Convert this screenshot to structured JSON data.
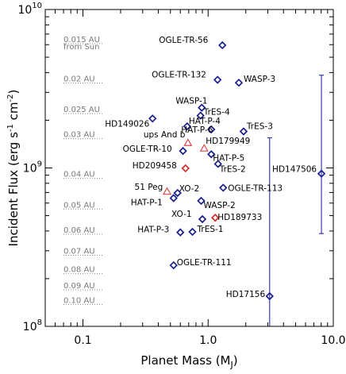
{
  "chart_data": {
    "type": "scatter",
    "xlabel": "Planet Mass (M",
    "xlabel_sub": "J",
    "xlabel_close": ")",
    "ylabel": "Incident Flux (erg s",
    "ylabel_sup1": "-1",
    "ylabel_mid": " cm",
    "ylabel_sup2": "-2",
    "ylabel_close": ")",
    "x_scale": "log",
    "y_scale": "log",
    "xlim": [
      0.05,
      10
    ],
    "ylim": [
      100000000.0,
      10000000000.0
    ],
    "x_ticks": [
      {
        "value": 0.1,
        "label": "0.1"
      },
      {
        "value": 1.0,
        "label": "1.0"
      },
      {
        "value": 10.0,
        "label": "10.0"
      }
    ],
    "y_ticks": [
      {
        "value": 100000000.0,
        "base": "10",
        "exp": "8"
      },
      {
        "value": 1000000000.0,
        "base": "10",
        "exp": "9"
      },
      {
        "value": 10000000000.0,
        "base": "10",
        "exp": "10"
      }
    ],
    "distance_labels": [
      {
        "label": "0.015 AU",
        "flux": 6100000000.0
      },
      {
        "label": "from Sun",
        "flux": 5500000000.0
      },
      {
        "label": "0.02 AU",
        "flux": 3440000000.0
      },
      {
        "label": "0.025 AU",
        "flux": 2200000000.0
      },
      {
        "label": "0.03 AU",
        "flux": 1530000000.0
      },
      {
        "label": "0.04 AU",
        "flux": 860000000.0
      },
      {
        "label": "0.05 AU",
        "flux": 550000000.0
      },
      {
        "label": "0.06 AU",
        "flux": 382000000.0
      },
      {
        "label": "0.07 AU",
        "flux": 281000000.0
      },
      {
        "label": "0.08 AU",
        "flux": 215000000.0
      },
      {
        "label": "0.09 AU",
        "flux": 170000000.0
      },
      {
        "label": "0.10 AU",
        "flux": 137500000.0
      }
    ],
    "series": [
      {
        "marker": "diamond",
        "color": "#1a1f8a",
        "points": [
          {
            "name": "OGLE-TR-56",
            "x": 1.3,
            "y": 5950000000.0
          },
          {
            "name": "OGLE-TR-132",
            "x": 1.19,
            "y": 3600000000.0
          },
          {
            "name": "WASP-3",
            "x": 1.76,
            "y": 3450000000.0
          },
          {
            "name": "WASP-1",
            "x": 0.89,
            "y": 2400000000.0
          },
          {
            "name": "TrES-4",
            "x": 0.87,
            "y": 2140000000.0
          },
          {
            "name": "HD149026",
            "x": 0.36,
            "y": 2050000000.0
          },
          {
            "name": "HAT-P-4",
            "x": 0.68,
            "y": 1830000000.0
          },
          {
            "name": "HAT-P-6",
            "x": 1.06,
            "y": 1750000000.0
          },
          {
            "name": "TrES-3",
            "x": 1.92,
            "y": 1700000000.0
          },
          {
            "name": "OGLE-TR-10",
            "x": 0.63,
            "y": 1280000000.0
          },
          {
            "name": "HAT-P-5",
            "x": 1.06,
            "y": 1220000000.0
          },
          {
            "name": "TrES-2",
            "x": 1.2,
            "y": 1060000000.0
          },
          {
            "name": "HD147506",
            "x": 8.04,
            "y": 920000000.0
          },
          {
            "name": "OGLE-TR-113",
            "x": 1.32,
            "y": 750000000.0
          },
          {
            "name": "XO-2",
            "x": 0.57,
            "y": 695000000.0
          },
          {
            "name": "HAT-P-1",
            "x": 0.53,
            "y": 645000000.0
          },
          {
            "name": "WASP-2",
            "x": 0.88,
            "y": 620000000.0
          },
          {
            "name": "XO-1",
            "x": 0.9,
            "y": 475000000.0
          },
          {
            "name": "HAT-P-3",
            "x": 0.6,
            "y": 392000000.0
          },
          {
            "name": "TrES-1",
            "x": 0.75,
            "y": 395000000.0
          },
          {
            "name": "OGLE-TR-111",
            "x": 0.53,
            "y": 243000000.0
          },
          {
            "name": "HD17156",
            "x": 3.1,
            "y": 155000000.0
          }
        ]
      },
      {
        "marker": "triangle",
        "color": "#e04a4a",
        "points": [
          {
            "name": "ups And b",
            "x": 0.69,
            "y": 1440000000.0
          },
          {
            "name": "HD179949",
            "x": 0.93,
            "y": 1330000000.0
          },
          {
            "name": "51 Peg",
            "x": 0.47,
            "y": 710000000.0
          }
        ]
      },
      {
        "marker": "diamond",
        "color": "#d42a2a",
        "points": [
          {
            "name": "HD209458",
            "x": 0.66,
            "y": 995000000.0
          },
          {
            "name": "HD189733",
            "x": 1.14,
            "y": 485000000.0
          }
        ]
      }
    ],
    "error_bars": [
      {
        "name": "HD147506",
        "x": 8.04,
        "y": 920000000.0,
        "ymin": 385000000.0,
        "ymax": 3850000000.0
      },
      {
        "name": "HD17156",
        "x": 3.1,
        "y": 155000000.0,
        "ymin": 100000000.0,
        "ymax": 1550000000.0
      }
    ]
  }
}
